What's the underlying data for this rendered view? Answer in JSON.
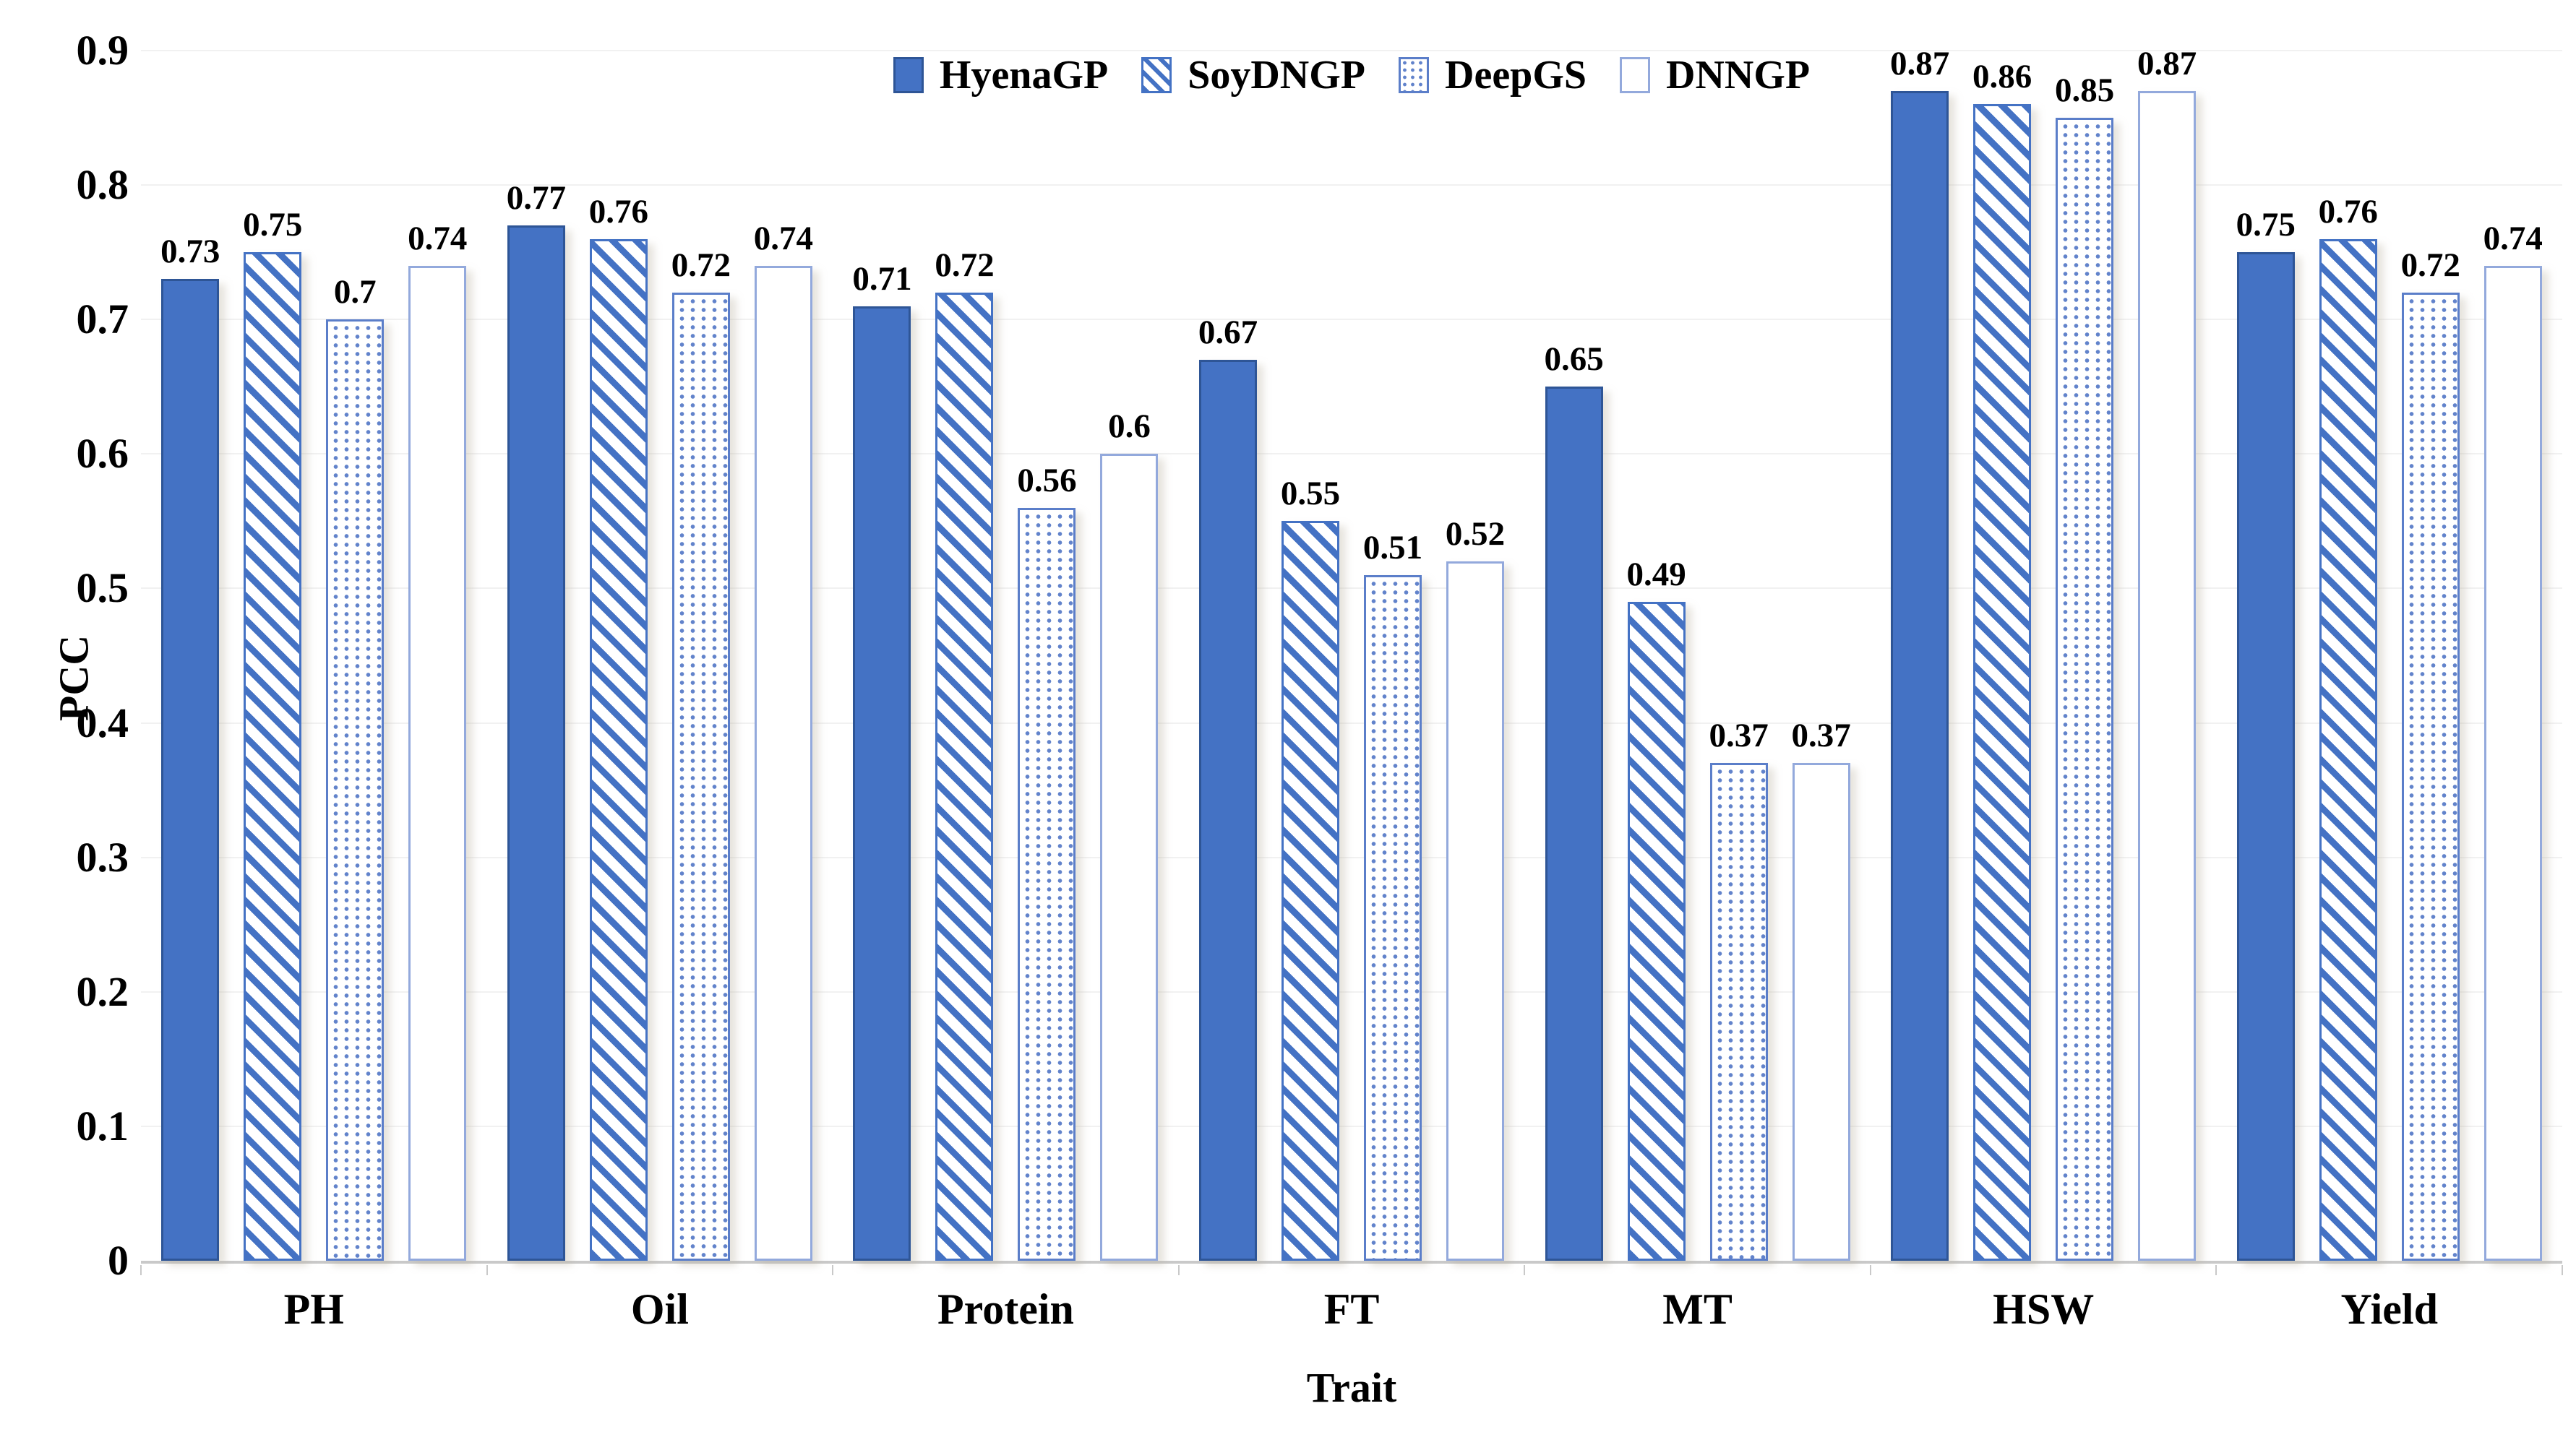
{
  "chart_data": {
    "type": "bar",
    "title": "",
    "xlabel": "Trait",
    "ylabel": "PCC",
    "ylim": [
      0,
      0.9
    ],
    "ytick_labels": [
      "0.9",
      "0.8",
      "0.7",
      "0.6",
      "0.5",
      "0.4",
      "0.3",
      "0.2",
      "0.1",
      "0"
    ],
    "grid": true,
    "legend_position": "top-center",
    "categories": [
      "PH",
      "Oil",
      "Protein",
      "FT",
      "MT",
      "HSW",
      "Yield"
    ],
    "series": [
      {
        "name": "HyenaGP",
        "pattern": "solid",
        "values": [
          0.73,
          0.77,
          0.71,
          0.67,
          0.65,
          0.87,
          0.75
        ],
        "labels": [
          "0.73",
          "0.77",
          "0.71",
          "0.67",
          "0.65",
          "0.87",
          "0.75"
        ]
      },
      {
        "name": "SoyDNGP",
        "pattern": "stripes",
        "values": [
          0.75,
          0.76,
          0.72,
          0.55,
          0.49,
          0.86,
          0.76
        ],
        "labels": [
          "0.75",
          "0.76",
          "0.72",
          "0.55",
          "0.49",
          "0.86",
          "0.76"
        ]
      },
      {
        "name": "DeepGS",
        "pattern": "dots",
        "values": [
          0.7,
          0.72,
          0.56,
          0.51,
          0.37,
          0.85,
          0.72
        ],
        "labels": [
          "0.7",
          "0.72",
          "0.56",
          "0.51",
          "0.37",
          "0.85",
          "0.72"
        ]
      },
      {
        "name": "DNNGP",
        "pattern": "outline",
        "values": [
          0.74,
          0.74,
          0.6,
          0.52,
          0.37,
          0.87,
          0.74
        ],
        "labels": [
          "0.74",
          "0.74",
          "0.6",
          "0.52",
          "0.37",
          "0.87",
          "0.74"
        ]
      }
    ],
    "colors": {
      "bar_fill": "#4472c4",
      "bar_border_dark": "#2e5596",
      "bar_border_light": "#93a9dc",
      "gridline": "#f1f1f1",
      "axis_line": "#c9c9c9",
      "text": "#000000"
    }
  }
}
